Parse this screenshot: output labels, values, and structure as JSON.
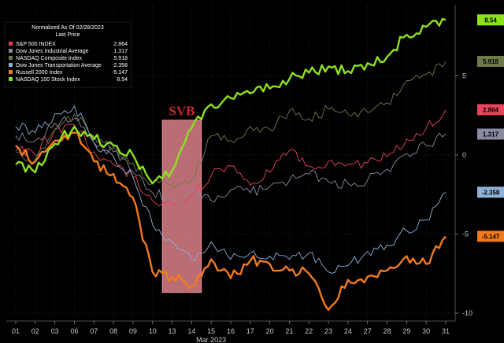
{
  "chart_data": {
    "type": "line",
    "legend": {
      "title": "Normalized As Of 02/28/2023",
      "subtitle": "Last Price",
      "placement": "top-left"
    },
    "annotation": {
      "label": "SVB",
      "x_start": 8.5,
      "x_end": 10.5,
      "color": "#f08c96"
    },
    "x_axis": {
      "ticks": [
        "01",
        "02",
        "03",
        "06",
        "07",
        "08",
        "09",
        "10",
        "13",
        "14",
        "15",
        "16",
        "17",
        "20",
        "21",
        "22",
        "23",
        "24",
        "27",
        "28",
        "29",
        "30",
        "31"
      ],
      "label": "Mar 2023"
    },
    "y_axis": {
      "ticks": [
        5,
        0,
        -5,
        -10
      ],
      "range": [
        -10.5,
        9.5
      ],
      "side": "right"
    },
    "grid": true,
    "series": [
      {
        "name": "S&P 500 INDEX",
        "last": "2.864",
        "color": "#e8435a",
        "values": [
          0.3,
          0.0,
          1.6,
          1.9,
          0.2,
          -0.6,
          -1.4,
          -2.9,
          -3.2,
          -2.6,
          -1.3,
          -0.7,
          -1.9,
          -1.1,
          0.3,
          -0.7,
          -0.4,
          -0.6,
          -0.5,
          -0.1,
          1.0,
          1.7,
          2.86
        ]
      },
      {
        "name": "Dow Jones Industrial Average",
        "last": "1.317",
        "color": "#8a8aa0",
        "values": [
          1.2,
          0.9,
          2.0,
          2.3,
          0.8,
          0.2,
          -1.1,
          -2.4,
          -2.8,
          -2.2,
          -2.9,
          -2.2,
          -2.4,
          -2.0,
          -1.6,
          -1.2,
          -1.7,
          -1.8,
          -1.6,
          -0.9,
          0.1,
          0.6,
          1.32
        ]
      },
      {
        "name": "NASDAQ Composite Index",
        "last": "5.918",
        "color": "#6e7a4a",
        "values": [
          0.2,
          -0.3,
          1.6,
          2.6,
          1.2,
          0.5,
          -0.5,
          -1.8,
          -1.9,
          -1.6,
          1.2,
          0.9,
          1.8,
          1.6,
          2.8,
          2.3,
          2.9,
          2.6,
          2.7,
          3.3,
          4.7,
          5.1,
          5.92
        ]
      },
      {
        "name": "Dow Jones Transportation Average",
        "last": "-2.358",
        "color": "#8fb1d6",
        "values": [
          1.8,
          1.4,
          2.6,
          3.1,
          0.8,
          -0.1,
          -1.4,
          -4.4,
          -5.5,
          -6.6,
          -5.5,
          -6.6,
          -6.2,
          -6.4,
          -6.6,
          -6.2,
          -7.4,
          -7.0,
          -6.1,
          -5.7,
          -4.8,
          -4.1,
          -2.36
        ]
      },
      {
        "name": "Russell 2000 Index",
        "last": "-5.147",
        "color": "#f07a1e",
        "values": [
          0.6,
          -0.4,
          0.9,
          1.4,
          -0.4,
          -1.2,
          -2.7,
          -7.4,
          -7.7,
          -8.3,
          -6.6,
          -7.8,
          -6.7,
          -6.9,
          -7.3,
          -7.5,
          -9.8,
          -7.9,
          -7.7,
          -7.3,
          -6.4,
          -6.9,
          -5.15
        ]
      },
      {
        "name": "NASDAQ 100 Stock Index",
        "last": "8.54",
        "color": "#8ce21e",
        "values": [
          -0.6,
          -1.1,
          0.7,
          1.8,
          1.0,
          0.6,
          0.0,
          -1.8,
          -1.0,
          1.7,
          3.2,
          3.6,
          3.9,
          4.2,
          4.8,
          5.2,
          5.6,
          5.3,
          5.8,
          6.2,
          7.6,
          8.1,
          8.54
        ]
      }
    ]
  }
}
